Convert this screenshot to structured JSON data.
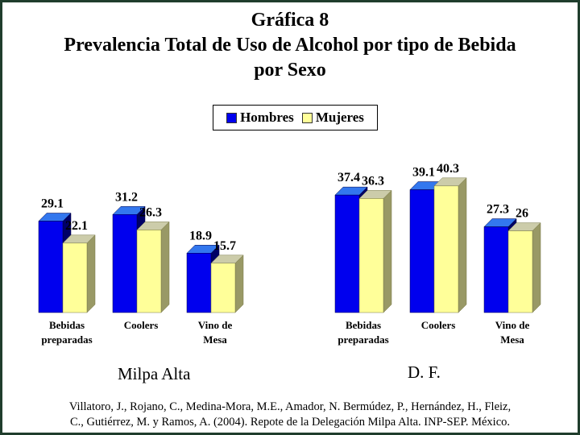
{
  "title": {
    "line1": "Gráfica 8",
    "line2": "Prevalencia Total de Uso de Alcohol por tipo de Bebida",
    "line3": "por Sexo"
  },
  "legend": {
    "hombres": "Hombres",
    "mujeres": "Mujeres"
  },
  "colors": {
    "hombres": "#0000ee",
    "mujeres": "#ffff99",
    "frame": "#1f3d2c"
  },
  "chart_data": [
    {
      "type": "bar",
      "title": "Milpa Alta",
      "categories": [
        [
          "Bebidas",
          "preparadas"
        ],
        [
          "Coolers"
        ],
        [
          "Vino de",
          "Mesa"
        ]
      ],
      "series": [
        {
          "name": "Hombres",
          "values": [
            29.1,
            31.2,
            18.9
          ],
          "labels": [
            "29.1",
            "31.2",
            "18.9"
          ]
        },
        {
          "name": "Mujeres",
          "values": [
            22.1,
            26.3,
            15.7
          ],
          "labels": [
            "22.1",
            "26.3",
            "15.7"
          ]
        }
      ],
      "legend_position": "top-center"
    },
    {
      "type": "bar",
      "title": "D. F.",
      "categories": [
        [
          "Bebidas",
          "preparadas"
        ],
        [
          "Coolers"
        ],
        [
          "Vino de",
          "Mesa"
        ]
      ],
      "series": [
        {
          "name": "Hombres",
          "values": [
            37.4,
            39.1,
            27.3
          ],
          "labels": [
            "37.4",
            "39.1",
            "27.3"
          ]
        },
        {
          "name": "Mujeres",
          "values": [
            36.3,
            40.3,
            26.0
          ],
          "labels": [
            "36.3",
            "40.3",
            "26"
          ]
        }
      ],
      "legend_position": "top-center"
    }
  ],
  "citation": {
    "line1": "Villatoro, J., Rojano, C., Medina-Mora, M.E., Amador, N. Bermúdez, P., Hernández, H., Fleiz,",
    "line2": "C., Gutiérrez, M. y Ramos, A. (2004). Repote de la Delegación Milpa Alta. INP-SEP. México."
  }
}
